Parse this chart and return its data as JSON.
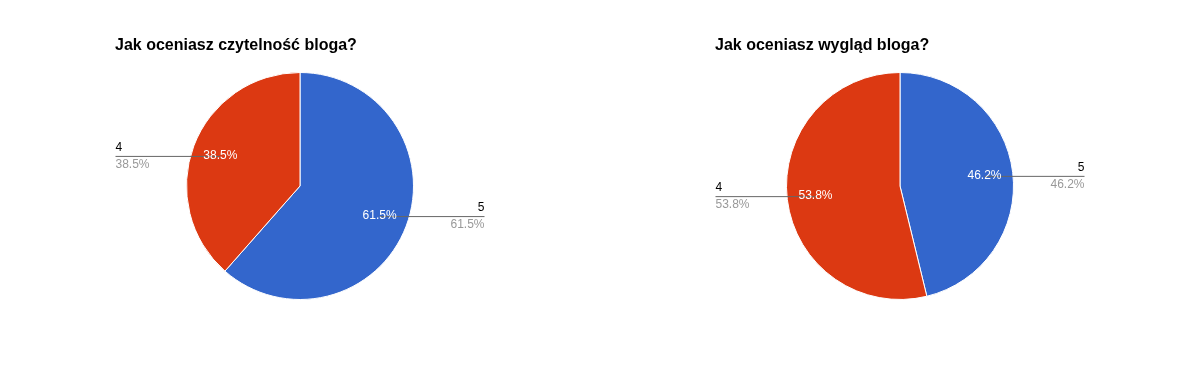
{
  "chart_data": [
    {
      "type": "pie",
      "title": "Jak oceniasz czytelność bloga?",
      "categories": [
        "5",
        "4"
      ],
      "values": [
        61.5,
        38.5
      ],
      "colors": [
        "#3366cc",
        "#dc3912"
      ],
      "value_labels": [
        "61.5%",
        "38.5%"
      ],
      "legend": false
    },
    {
      "type": "pie",
      "title": "Jak oceniasz wygląd bloga?",
      "categories": [
        "5",
        "4"
      ],
      "values": [
        46.2,
        53.8
      ],
      "colors": [
        "#3366cc",
        "#dc3912"
      ],
      "value_labels": [
        "46.2%",
        "53.8%"
      ],
      "legend": false
    }
  ]
}
